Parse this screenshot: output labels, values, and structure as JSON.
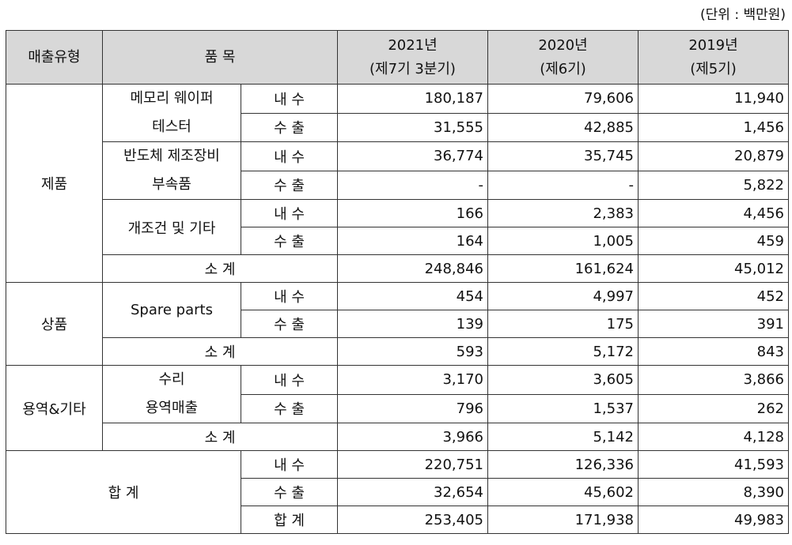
{
  "unit_label": "(단위 : 백만원)",
  "headers": {
    "type": "매출유형",
    "item": "품 목",
    "y2021": [
      "2021년",
      "(제7기 3분기)"
    ],
    "y2020": [
      "2020년",
      "(제6기)"
    ],
    "y2019": [
      "2019년",
      "(제5기)"
    ]
  },
  "labels": {
    "domestic": "내 수",
    "export": "수 출",
    "subtotal": "소 계",
    "total": "합 계"
  },
  "products": {
    "group": "제품",
    "items": [
      {
        "name": [
          "메모리 웨이퍼",
          "테스터"
        ],
        "domestic": [
          "180,187",
          "79,606",
          "11,940"
        ],
        "export": [
          "31,555",
          "42,885",
          "1,456"
        ]
      },
      {
        "name": [
          "반도체 제조장비",
          "부속품"
        ],
        "domestic": [
          "36,774",
          "35,745",
          "20,879"
        ],
        "export": [
          "-",
          "-",
          "5,822"
        ]
      },
      {
        "name": [
          "개조건 및 기타"
        ],
        "domestic": [
          "166",
          "2,383",
          "4,456"
        ],
        "export": [
          "164",
          "1,005",
          "459"
        ]
      }
    ],
    "subtotal": [
      "248,846",
      "161,624",
      "45,012"
    ]
  },
  "goods": {
    "group": "상품",
    "item": {
      "name": [
        "Spare parts"
      ],
      "domestic": [
        "454",
        "4,997",
        "452"
      ],
      "export": [
        "139",
        "175",
        "391"
      ]
    },
    "subtotal": [
      "593",
      "5,172",
      "843"
    ]
  },
  "services": {
    "group": "용역&기타",
    "item": {
      "name": [
        "수리",
        "용역매출"
      ],
      "domestic": [
        "3,170",
        "3,605",
        "3,866"
      ],
      "export": [
        "796",
        "1,537",
        "262"
      ]
    },
    "subtotal": [
      "3,966",
      "5,142",
      "4,128"
    ]
  },
  "total": {
    "group": "합 계",
    "domestic": [
      "220,751",
      "126,336",
      "41,593"
    ],
    "export": [
      "32,654",
      "45,602",
      "8,390"
    ],
    "sum": [
      "253,405",
      "171,938",
      "49,983"
    ]
  }
}
